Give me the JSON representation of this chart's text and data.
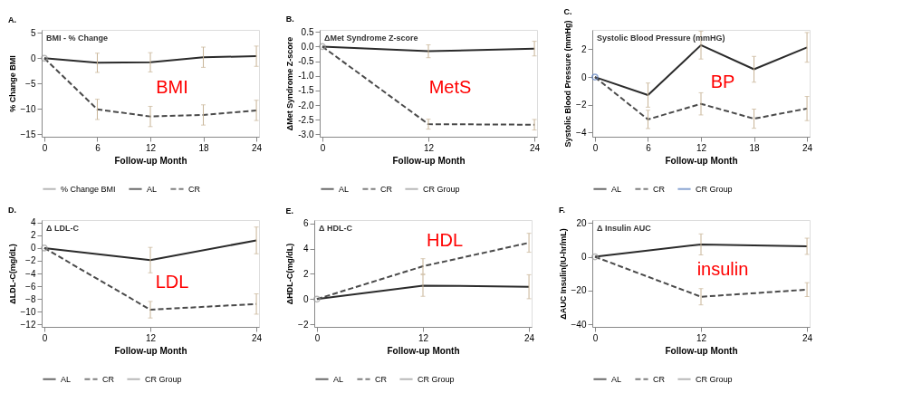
{
  "chart_data": [
    {
      "type": "line",
      "title": "A.",
      "subtitle": "BMI - % Change",
      "xlabel": "Follow-up Month",
      "ylabel": "% Change BMI",
      "xlim": [
        -0.3,
        24.3
      ],
      "xticks": [
        0,
        6,
        12,
        18,
        24
      ],
      "ylim": [
        -15.5,
        5.6
      ],
      "yticks": [
        -15,
        -10,
        -5,
        0,
        5
      ],
      "grid": false,
      "legend": "bottom",
      "annotations": [
        "BMI"
      ],
      "series": [
        {
          "name": "% Change BMI",
          "type": "scatter",
          "marker": "circle",
          "color": "#9a9a9a",
          "x": [
            0
          ],
          "values": [
            0
          ]
        },
        {
          "name": "AL",
          "color": "#2b2b2b",
          "line_style": "solid",
          "x": [
            0,
            6,
            12,
            18,
            24
          ],
          "values": [
            0,
            -0.9,
            -0.8,
            0.2,
            0.4
          ],
          "errors": [
            null,
            1.9,
            1.9,
            2,
            2
          ]
        },
        {
          "name": "CR",
          "color": "#4a4a4a",
          "line_style": "dashed",
          "x": [
            0,
            6,
            12,
            18,
            24
          ],
          "values": [
            0,
            -10.1,
            -11.5,
            -11.2,
            -10.3
          ],
          "errors": [
            null,
            2,
            2,
            2,
            2
          ]
        }
      ]
    },
    {
      "type": "line",
      "title": "B.",
      "subtitle": "ΔMet Syndrome Z-score",
      "xlabel": "Follow-up Month",
      "ylabel": "ΔMet Syndrome Z-score",
      "xlim": [
        -0.3,
        24.3
      ],
      "xticks": [
        0,
        12,
        24
      ],
      "ylim": [
        -3.08,
        0.57
      ],
      "yticks": [
        {
          "value": 0.5,
          "label": "0.5"
        },
        {
          "value": 0,
          "label": "0.0"
        },
        {
          "value": -0.5,
          "label": "-0.5"
        },
        {
          "value": -1,
          "label": "-1.0"
        },
        {
          "value": -1.5,
          "label": "-1.5"
        },
        {
          "value": -2,
          "label": "-2.0"
        },
        {
          "value": -2.5,
          "label": "-2.5"
        },
        {
          "value": -3,
          "label": "-3.0"
        }
      ],
      "grid": false,
      "legend": "bottom",
      "annotations": [
        "MetS"
      ],
      "series": [
        {
          "name": "AL",
          "color": "#2b2b2b",
          "line_style": "solid",
          "x": [
            0,
            12,
            24
          ],
          "values": [
            0,
            -0.16,
            -0.07
          ],
          "errors": [
            null,
            0.22,
            0.25
          ]
        },
        {
          "name": "CR",
          "color": "#4a4a4a",
          "line_style": "dashed",
          "x": [
            0,
            12,
            24
          ],
          "values": [
            0,
            -2.65,
            -2.67
          ],
          "errors": [
            null,
            0.17,
            0.18
          ]
        },
        {
          "name": "CR Group",
          "type": "scatter",
          "marker": "circle",
          "color": "#9a9a9a",
          "x": [
            0
          ],
          "values": [
            0
          ]
        }
      ]
    },
    {
      "type": "line",
      "title": "C.",
      "subtitle": "Systolic Blood Pressure (mmHG)",
      "xlabel": "Follow-up Month",
      "ylabel": "Systolic Blood Pressure (mmHg)",
      "xlim": [
        -0.3,
        24.3
      ],
      "xticks": [
        0,
        6,
        12,
        18,
        24
      ],
      "ylim": [
        -4.3,
        3.4
      ],
      "yticks": [
        -4,
        -2,
        0,
        2
      ],
      "grid": false,
      "legend": "bottom",
      "annotations": [
        "BP"
      ],
      "series": [
        {
          "name": "AL",
          "color": "#2b2b2b",
          "line_style": "solid",
          "x": [
            0,
            6,
            12,
            18,
            24
          ],
          "values": [
            0,
            -1.3,
            2.3,
            0.56,
            2.14
          ],
          "errors": [
            null,
            0.87,
            1,
            0.93,
            1.07
          ]
        },
        {
          "name": "CR",
          "color": "#4a4a4a",
          "line_style": "dashed",
          "x": [
            0,
            6,
            12,
            18,
            24
          ],
          "values": [
            0,
            -3.05,
            -1.93,
            -3,
            -2.27
          ],
          "errors": [
            null,
            0.66,
            0.8,
            0.69,
            0.87
          ]
        },
        {
          "name": "CR Group",
          "type": "scatter",
          "marker": "circle",
          "color": "#5b7fc0",
          "x": [
            0
          ],
          "values": [
            0
          ]
        }
      ]
    },
    {
      "type": "line",
      "title": "D.",
      "subtitle": "Δ LDL-C",
      "xlabel": "Follow-up Month",
      "ylabel": "ΔLDL-C(mg/dL)",
      "xlim": [
        -0.3,
        24.3
      ],
      "xticks": [
        0,
        12,
        24
      ],
      "ylim": [
        -12.4,
        4.4
      ],
      "yticks": [
        -12,
        -10,
        -8,
        -6,
        -4,
        -2,
        0,
        2,
        4
      ],
      "grid": false,
      "legend": "bottom",
      "annotations": [
        "LDL"
      ],
      "series": [
        {
          "name": "AL",
          "color": "#2b2b2b",
          "line_style": "solid",
          "x": [
            0,
            12,
            24
          ],
          "values": [
            0,
            -1.9,
            1.2
          ],
          "errors": [
            null,
            2,
            2.1
          ]
        },
        {
          "name": "CR",
          "color": "#4a4a4a",
          "line_style": "dashed",
          "x": [
            0,
            12,
            24
          ],
          "values": [
            0,
            -9.7,
            -8.8
          ],
          "errors": [
            null,
            1.3,
            1.6
          ]
        },
        {
          "name": "CR Group",
          "type": "scatter",
          "marker": "circle",
          "color": "#9a9a9a",
          "x": [
            0
          ],
          "values": [
            0
          ]
        }
      ]
    },
    {
      "type": "line",
      "title": "E.",
      "subtitle": "Δ HDL-C",
      "xlabel": "Follow-up Month",
      "ylabel": "ΔHDL-C(mg/dL)",
      "xlim": [
        -0.3,
        24.3
      ],
      "xticks": [
        0,
        12,
        24
      ],
      "ylim": [
        -2.2,
        6.26
      ],
      "yticks": [
        -2,
        0,
        2,
        4,
        6
      ],
      "grid": false,
      "legend": "bottom",
      "annotations": [
        "HDL"
      ],
      "series": [
        {
          "name": "AL",
          "color": "#2b2b2b",
          "line_style": "solid",
          "x": [
            0,
            12,
            24
          ],
          "values": [
            0,
            1.07,
            0.98
          ],
          "errors": [
            null,
            0.85,
            0.95
          ]
        },
        {
          "name": "CR",
          "color": "#4a4a4a",
          "line_style": "dashed",
          "x": [
            0,
            12,
            24
          ],
          "values": [
            0,
            2.6,
            4.46
          ],
          "errors": [
            null,
            0.6,
            0.75
          ]
        },
        {
          "name": "CR Group",
          "type": "scatter",
          "marker": "circle",
          "color": "#9a9a9a",
          "x": [
            0
          ],
          "values": [
            0
          ]
        }
      ]
    },
    {
      "type": "line",
      "title": "F.",
      "subtitle": "Δ Insulin AUC",
      "xlabel": "Follow-up Month",
      "ylabel": "ΔAUC Insulin(IU-hr/mL)",
      "xlim": [
        -0.3,
        24.3
      ],
      "xticks": [
        0,
        12,
        24
      ],
      "ylim": [
        -41.4,
        21.7
      ],
      "yticks": [
        -40,
        -20,
        0,
        20
      ],
      "grid": false,
      "legend": "bottom",
      "annotations": [
        "insulin"
      ],
      "series": [
        {
          "name": "AL",
          "color": "#2b2b2b",
          "line_style": "solid",
          "x": [
            0,
            12,
            24
          ],
          "values": [
            0,
            7.3,
            6.2
          ],
          "errors": [
            null,
            6.2,
            4.8
          ]
        },
        {
          "name": "CR",
          "color": "#4a4a4a",
          "line_style": "dashed",
          "x": [
            0,
            12,
            24
          ],
          "values": [
            0,
            -23.6,
            -19.4
          ],
          "errors": [
            null,
            4.8,
            4.1
          ]
        },
        {
          "name": "CR Group",
          "type": "scatter",
          "marker": "circle",
          "color": "#9a9a9a",
          "x": [
            0
          ],
          "values": [
            0
          ]
        }
      ]
    }
  ]
}
